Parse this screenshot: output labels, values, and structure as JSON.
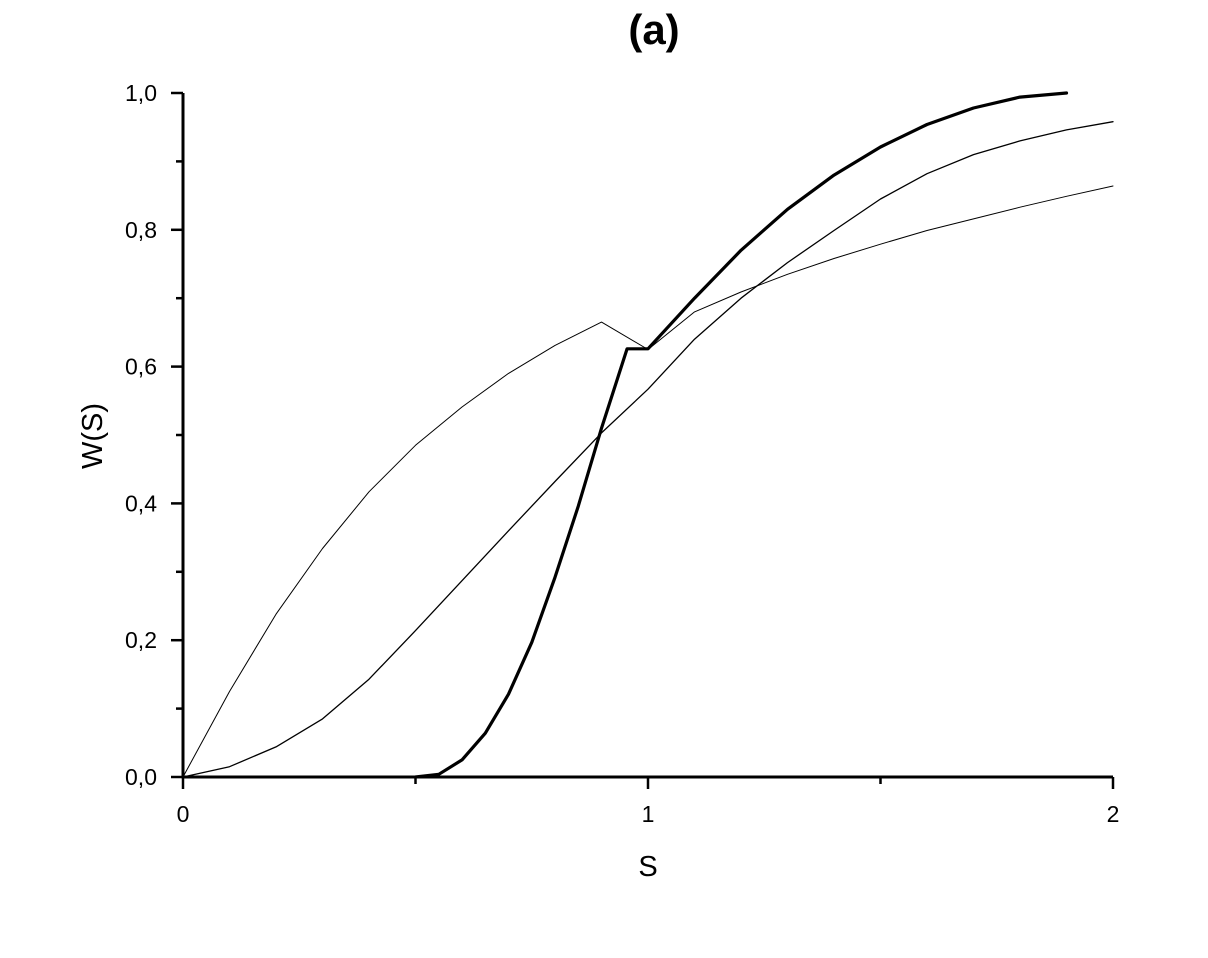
{
  "chart_data": {
    "type": "line",
    "title": "(a)",
    "xlabel": "S",
    "ylabel": "W(S)",
    "xlim": [
      0,
      2
    ],
    "ylim": [
      0,
      1
    ],
    "grid": false,
    "x_ticks": [
      {
        "value": 0,
        "label": "0"
      },
      {
        "value": 1,
        "label": "1"
      },
      {
        "value": 2,
        "label": "2"
      }
    ],
    "x_minor_ticks": [
      0.5,
      1.5
    ],
    "y_ticks": [
      {
        "value": 0.0,
        "label": "0,0"
      },
      {
        "value": 0.2,
        "label": "0,2"
      },
      {
        "value": 0.4,
        "label": "0,4"
      },
      {
        "value": 0.6,
        "label": "0,6"
      },
      {
        "value": 0.8,
        "label": "0,8"
      },
      {
        "value": 1.0,
        "label": "1,0"
      }
    ],
    "y_minor_ticks": [
      0.1,
      0.3,
      0.5,
      0.7,
      0.9
    ],
    "series": [
      {
        "color": "#000000",
        "x": [
          0,
          0.1,
          0.2,
          0.3,
          0.4,
          0.5,
          0.6,
          0.7,
          0.8,
          0.9,
          1.0,
          1.1,
          1.2,
          1.3,
          1.4,
          1.5,
          1.6,
          1.7,
          1.8,
          1.9,
          2.0
        ],
        "y": [
          0,
          0.125,
          0.238,
          0.334,
          0.417,
          0.485,
          0.541,
          0.59,
          0.631,
          0.665,
          0.625,
          0.68,
          0.709,
          0.735,
          0.758,
          0.779,
          0.799,
          0.816,
          0.833,
          0.849,
          0.864
        ]
      },
      {
        "color": "#000000",
        "x": [
          0,
          0.1,
          0.2,
          0.3,
          0.4,
          0.5,
          0.6,
          0.7,
          0.8,
          0.9,
          1.0,
          1.1,
          1.2,
          1.3,
          1.4,
          1.5,
          1.6,
          1.7,
          1.8,
          1.9,
          2.0
        ],
        "y": [
          0,
          0.015,
          0.044,
          0.085,
          0.143,
          0.214,
          0.287,
          0.36,
          0.432,
          0.503,
          0.567,
          0.64,
          0.7,
          0.752,
          0.799,
          0.845,
          0.882,
          0.91,
          0.93,
          0.946,
          0.958
        ]
      },
      {
        "color": "#000000",
        "x": [
          0.5,
          0.55,
          0.6,
          0.65,
          0.7,
          0.75,
          0.8,
          0.85,
          0.9,
          0.955,
          1.0,
          1.1,
          1.2,
          1.3,
          1.4,
          1.5,
          1.6,
          1.7,
          1.8,
          1.9
        ],
        "y": [
          0,
          0.004,
          0.025,
          0.064,
          0.121,
          0.197,
          0.292,
          0.396,
          0.51,
          0.626,
          0.626,
          0.7,
          0.77,
          0.83,
          0.88,
          0.921,
          0.954,
          0.978,
          0.994,
          1.0
        ]
      }
    ]
  }
}
